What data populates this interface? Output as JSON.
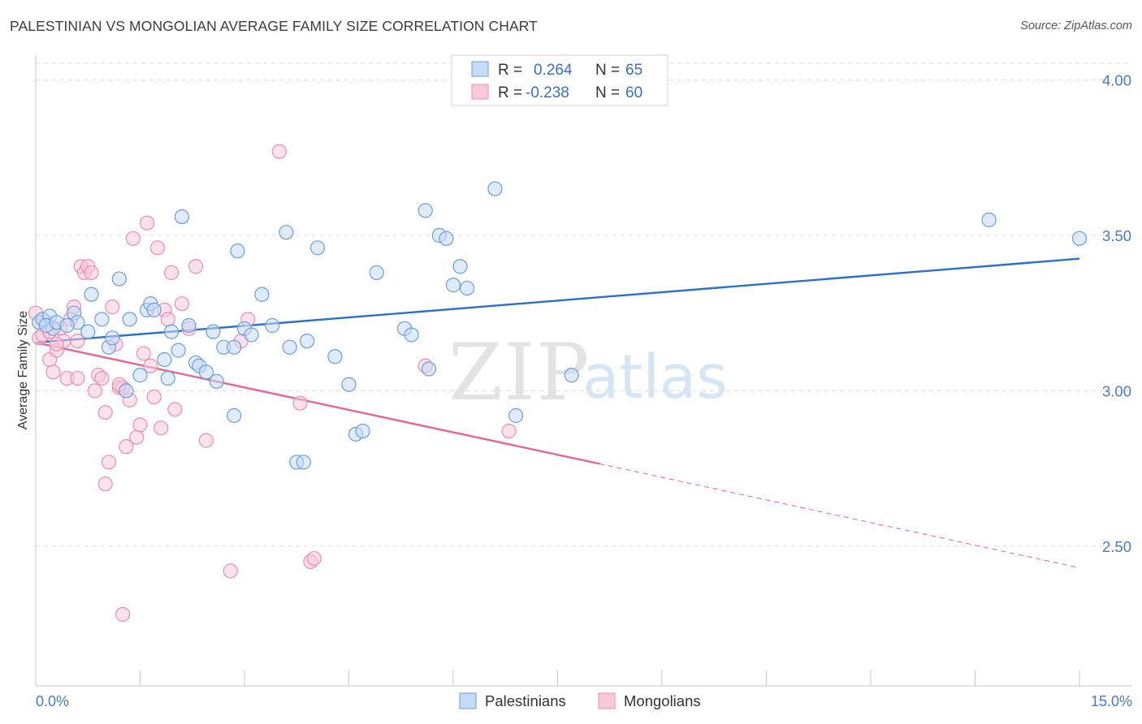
{
  "title": "PALESTINIAN VS MONGOLIAN AVERAGE FAMILY SIZE CORRELATION CHART",
  "source": "Source: ZipAtlas.com",
  "watermark": {
    "zip": "ZIP",
    "atlas": "atlas"
  },
  "colors": {
    "blue_fill": "#c5dbf6",
    "blue_stroke": "#6a9fdc",
    "blue_line": "#2c6fca",
    "pink_fill": "#f8c9d8",
    "pink_stroke": "#ee8fb0",
    "pink_line": "#e46693",
    "grid": "#dcdcdc",
    "tick": "#4a7bc8"
  },
  "legend": {
    "rows": [
      {
        "r_label": "R =",
        "r_value": "0.264",
        "n_label": "N =",
        "n_value": "65",
        "series": "blue"
      },
      {
        "r_label": "R =",
        "r_value": "-0.238",
        "n_label": "N =",
        "n_value": "60",
        "series": "pink"
      }
    ]
  },
  "bottom_legend": [
    "Palestinians",
    "Mongolians"
  ],
  "chart_data": {
    "type": "scatter",
    "title": "PALESTINIAN VS MONGOLIAN AVERAGE FAMILY SIZE CORRELATION CHART",
    "xlabel": "",
    "ylabel": "Average Family Size",
    "xlim": [
      0,
      15
    ],
    "ylim": [
      2.05,
      4.08
    ],
    "x_tick_labels": [
      "0.0%",
      "15.0%"
    ],
    "y_ticks": [
      2.5,
      3.0,
      3.5,
      4.0
    ],
    "y_tick_labels": [
      "2.50",
      "3.00",
      "3.50",
      "4.00"
    ],
    "grid": true,
    "series": [
      {
        "name": "Palestinians",
        "r": 0.264,
        "n": 65,
        "trend": {
          "x": [
            0,
            15
          ],
          "y": [
            3.155,
            3.425
          ],
          "extrapolated": false
        },
        "points": [
          [
            0.05,
            3.22
          ],
          [
            0.1,
            3.23
          ],
          [
            0.2,
            3.24
          ],
          [
            0.25,
            3.2
          ],
          [
            0.15,
            3.21
          ],
          [
            0.3,
            3.22
          ],
          [
            0.55,
            3.25
          ],
          [
            0.6,
            3.22
          ],
          [
            0.75,
            3.19
          ],
          [
            0.8,
            3.31
          ],
          [
            0.95,
            3.23
          ],
          [
            1.05,
            3.14
          ],
          [
            1.1,
            3.17
          ],
          [
            1.2,
            3.36
          ],
          [
            1.3,
            3.0
          ],
          [
            1.35,
            3.23
          ],
          [
            1.5,
            3.05
          ],
          [
            1.6,
            3.26
          ],
          [
            1.65,
            3.28
          ],
          [
            1.7,
            3.26
          ],
          [
            1.85,
            3.1
          ],
          [
            1.9,
            3.04
          ],
          [
            1.95,
            3.19
          ],
          [
            2.05,
            3.13
          ],
          [
            2.1,
            3.56
          ],
          [
            2.2,
            3.21
          ],
          [
            2.3,
            3.09
          ],
          [
            2.35,
            3.08
          ],
          [
            2.45,
            3.06
          ],
          [
            2.55,
            3.19
          ],
          [
            2.6,
            3.03
          ],
          [
            2.7,
            3.14
          ],
          [
            2.85,
            3.14
          ],
          [
            2.85,
            2.92
          ],
          [
            2.9,
            3.45
          ],
          [
            3.0,
            3.2
          ],
          [
            3.1,
            3.18
          ],
          [
            3.25,
            3.31
          ],
          [
            3.4,
            3.21
          ],
          [
            3.6,
            3.51
          ],
          [
            3.65,
            3.14
          ],
          [
            3.75,
            2.77
          ],
          [
            3.85,
            2.77
          ],
          [
            3.9,
            3.16
          ],
          [
            4.05,
            3.46
          ],
          [
            4.3,
            3.11
          ],
          [
            4.5,
            3.02
          ],
          [
            4.6,
            2.86
          ],
          [
            4.7,
            2.87
          ],
          [
            4.9,
            3.38
          ],
          [
            5.3,
            3.2
          ],
          [
            5.4,
            3.18
          ],
          [
            5.6,
            3.58
          ],
          [
            5.65,
            3.07
          ],
          [
            5.8,
            3.5
          ],
          [
            5.9,
            3.49
          ],
          [
            6.0,
            3.34
          ],
          [
            6.1,
            3.4
          ],
          [
            6.2,
            3.33
          ],
          [
            6.6,
            3.65
          ],
          [
            6.9,
            2.92
          ],
          [
            7.7,
            3.05
          ],
          [
            13.7,
            3.55
          ],
          [
            15.0,
            3.49
          ],
          [
            0.45,
            3.21
          ]
        ]
      },
      {
        "name": "Mongolians",
        "r": -0.238,
        "n": 60,
        "trend": {
          "x": [
            0,
            8.1
          ],
          "y": [
            3.155,
            2.765
          ],
          "extrapolated_to": [
            15,
            2.43
          ]
        },
        "points": [
          [
            0.0,
            3.25
          ],
          [
            0.05,
            3.17
          ],
          [
            0.1,
            3.18
          ],
          [
            0.15,
            3.22
          ],
          [
            0.2,
            3.19
          ],
          [
            0.2,
            3.1
          ],
          [
            0.25,
            3.06
          ],
          [
            0.3,
            3.13
          ],
          [
            0.35,
            3.2
          ],
          [
            0.4,
            3.16
          ],
          [
            0.45,
            3.04
          ],
          [
            0.5,
            3.23
          ],
          [
            0.55,
            3.27
          ],
          [
            0.6,
            3.16
          ],
          [
            0.6,
            3.04
          ],
          [
            0.65,
            3.4
          ],
          [
            0.7,
            3.38
          ],
          [
            0.75,
            3.4
          ],
          [
            0.8,
            3.38
          ],
          [
            0.85,
            3.0
          ],
          [
            0.9,
            3.05
          ],
          [
            0.95,
            3.04
          ],
          [
            1.0,
            2.93
          ],
          [
            1.05,
            2.77
          ],
          [
            1.1,
            3.27
          ],
          [
            1.15,
            3.15
          ],
          [
            1.2,
            3.01
          ],
          [
            1.25,
            3.01
          ],
          [
            1.3,
            2.82
          ],
          [
            1.35,
            2.97
          ],
          [
            1.4,
            3.49
          ],
          [
            1.45,
            2.85
          ],
          [
            1.5,
            2.89
          ],
          [
            1.55,
            3.12
          ],
          [
            1.6,
            3.54
          ],
          [
            1.65,
            3.08
          ],
          [
            1.7,
            2.98
          ],
          [
            1.75,
            3.46
          ],
          [
            1.8,
            2.88
          ],
          [
            1.85,
            3.26
          ],
          [
            1.9,
            3.23
          ],
          [
            1.95,
            3.38
          ],
          [
            2.0,
            2.94
          ],
          [
            2.1,
            3.28
          ],
          [
            2.2,
            3.2
          ],
          [
            2.3,
            3.4
          ],
          [
            2.45,
            2.84
          ],
          [
            2.8,
            2.42
          ],
          [
            2.95,
            3.16
          ],
          [
            3.05,
            3.23
          ],
          [
            3.5,
            3.77
          ],
          [
            3.8,
            2.96
          ],
          [
            3.95,
            2.45
          ],
          [
            4.0,
            2.46
          ],
          [
            5.6,
            3.08
          ],
          [
            6.8,
            2.87
          ],
          [
            1.0,
            2.7
          ],
          [
            1.2,
            3.02
          ],
          [
            1.25,
            2.28
          ],
          [
            0.3,
            3.15
          ]
        ]
      }
    ]
  }
}
